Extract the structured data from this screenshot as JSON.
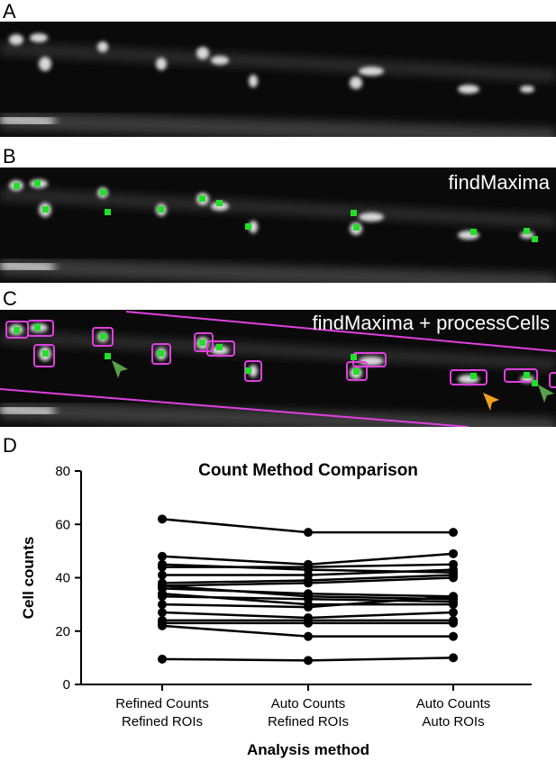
{
  "panels": {
    "a": {
      "letter": "A"
    },
    "b": {
      "letter": "B",
      "label": "findMaxima"
    },
    "c": {
      "letter": "C",
      "label": "findMaxima + processCells"
    },
    "d": {
      "letter": "D"
    }
  },
  "colors": {
    "maxima": "#22e02a",
    "roi": "#e040e0",
    "arrow_green": "#5aa04a",
    "arrow_orange": "#f0a020"
  },
  "chart_data": {
    "type": "line",
    "title": "Count Method Comparison",
    "xlabel": "Analysis method",
    "ylabel": "Cell counts",
    "categories": [
      "Refined Counts\nRefined ROIs",
      "Auto Counts\nRefined ROIs",
      "Auto Counts\nAuto ROIs"
    ],
    "ylim": [
      0,
      80
    ],
    "yticks": [
      "0",
      "20",
      "40",
      "60",
      "80"
    ],
    "series": [
      {
        "values": [
          62,
          57,
          57
        ]
      },
      {
        "values": [
          48,
          45,
          49
        ]
      },
      {
        "values": [
          44,
          44,
          45
        ]
      },
      {
        "values": [
          45,
          43,
          42
        ]
      },
      {
        "values": [
          41,
          41,
          43
        ]
      },
      {
        "values": [
          38,
          39,
          41
        ]
      },
      {
        "values": [
          37,
          38,
          40
        ]
      },
      {
        "values": [
          36,
          34,
          33
        ]
      },
      {
        "values": [
          37,
          33,
          32
        ]
      },
      {
        "values": [
          33,
          32,
          31
        ]
      },
      {
        "values": [
          34,
          30,
          30
        ]
      },
      {
        "values": [
          30,
          29,
          33
        ]
      },
      {
        "values": [
          27,
          25,
          27
        ]
      },
      {
        "values": [
          24,
          24,
          24
        ]
      },
      {
        "values": [
          23,
          23,
          23
        ]
      },
      {
        "values": [
          22,
          18,
          18
        ]
      },
      {
        "values": [
          9.5,
          9,
          10
        ]
      }
    ]
  }
}
